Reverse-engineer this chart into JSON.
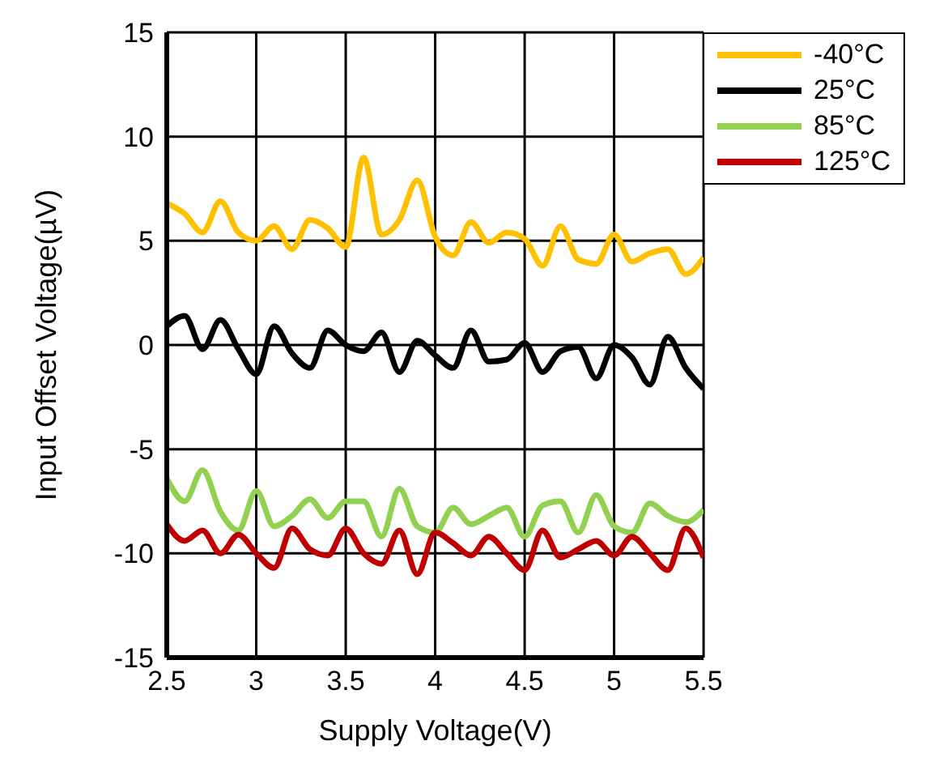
{
  "chart_data": {
    "type": "line",
    "xlabel": "Supply Voltage(V)",
    "ylabel": "Input Offset Voltage(µV)",
    "x": [
      2.5,
      2.6,
      2.7,
      2.8,
      2.9,
      3.0,
      3.1,
      3.2,
      3.3,
      3.4,
      3.5,
      3.6,
      3.7,
      3.8,
      3.9,
      4.0,
      4.1,
      4.2,
      4.3,
      4.4,
      4.5,
      4.6,
      4.7,
      4.8,
      4.9,
      5.0,
      5.1,
      5.2,
      5.3,
      5.4,
      5.5
    ],
    "xlim": [
      2.5,
      5.5
    ],
    "xticks": [
      2.5,
      3,
      3.5,
      4,
      4.5,
      5,
      5.5
    ],
    "ylim": [
      -15,
      15
    ],
    "yticks": [
      -15,
      -10,
      -5,
      0,
      5,
      10,
      15
    ],
    "grid": true,
    "legend": "top right",
    "marker": "none",
    "line_style": "solid",
    "series": [
      {
        "name": "-40°C",
        "color": "#ffc000",
        "values": [
          6.8,
          6.3,
          5.4,
          6.9,
          5.4,
          5.0,
          5.7,
          4.6,
          6.0,
          5.6,
          4.7,
          9.0,
          5.3,
          6.0,
          7.9,
          5.2,
          4.3,
          5.9,
          4.9,
          5.4,
          5.1,
          3.8,
          5.7,
          4.1,
          3.9,
          5.3,
          4.0,
          4.4,
          4.6,
          3.4,
          4.2
        ]
      },
      {
        "name": "25°C",
        "color": "#000000",
        "values": [
          0.9,
          1.4,
          -0.2,
          1.2,
          -0.2,
          -1.4,
          0.9,
          -0.4,
          -1.1,
          0.7,
          0.0,
          -0.3,
          0.6,
          -1.3,
          0.2,
          -0.5,
          -1.1,
          0.7,
          -0.8,
          -0.7,
          0.1,
          -1.3,
          -0.3,
          -0.1,
          -1.6,
          0.0,
          -0.6,
          -1.9,
          0.4,
          -1.1,
          -2.1
        ]
      },
      {
        "name": "85°C",
        "color": "#92d050",
        "values": [
          -6.4,
          -7.5,
          -6.0,
          -8.0,
          -8.9,
          -7.0,
          -8.7,
          -8.2,
          -7.4,
          -8.3,
          -7.5,
          -7.5,
          -9.2,
          -6.9,
          -8.7,
          -9.0,
          -7.8,
          -8.6,
          -8.2,
          -7.8,
          -9.2,
          -7.7,
          -7.5,
          -9.0,
          -7.2,
          -8.7,
          -9.0,
          -7.6,
          -8.2,
          -8.5,
          -7.9
        ]
      },
      {
        "name": "125°C",
        "color": "#c00000",
        "values": [
          -8.6,
          -9.4,
          -8.9,
          -10.0,
          -9.1,
          -10.0,
          -10.7,
          -8.8,
          -9.8,
          -10.1,
          -8.8,
          -10.0,
          -10.5,
          -8.9,
          -11.0,
          -9.0,
          -9.5,
          -10.1,
          -9.2,
          -10.0,
          -10.8,
          -8.9,
          -10.2,
          -9.8,
          -9.4,
          -10.1,
          -9.2,
          -10.0,
          -10.8,
          -8.8,
          -10.2
        ]
      }
    ]
  }
}
